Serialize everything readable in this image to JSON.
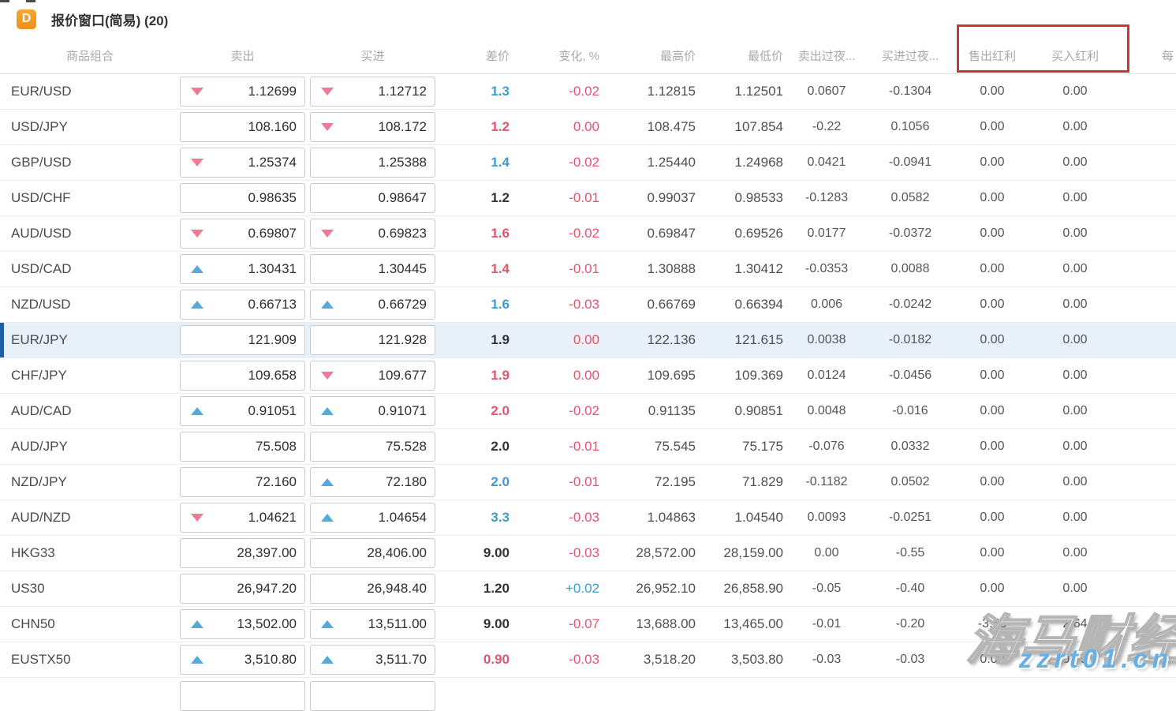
{
  "window": {
    "icon_letter": "D",
    "title": "报价窗口(简易) (20)"
  },
  "colors": {
    "accent_orange": "#f19e38",
    "trend_up": "#58a8dc",
    "trend_down": "#ee7b95",
    "value_blue": "#3e9bd0",
    "value_red": "#e2546e",
    "annotation_red": "#c83532",
    "selected_row_bg": "#e8f0fa",
    "selected_row_stripe": "#1e5fa3"
  },
  "annotation": {
    "type": "red-highlight-box",
    "highlighted_columns": [
      "售出红利",
      "买入红利"
    ]
  },
  "watermark": {
    "line1": "海马财经",
    "line2": "zzrt01.cn"
  },
  "table": {
    "headers": {
      "symbol": "商品组合",
      "sell": "卖出",
      "buy": "买进",
      "spread": "差价",
      "change": "变化, %",
      "high": "最高价",
      "low": "最低价",
      "sell_overnight": "卖出过夜...",
      "buy_overnight": "买进过夜...",
      "sell_dividend": "售出红利",
      "buy_dividend": "买入红利",
      "extra": "每"
    },
    "rows": [
      {
        "symbol": "EUR/USD",
        "sell_trend": "down",
        "sell": "1.12699",
        "buy_trend": "down",
        "buy": "1.12712",
        "spread": "1.3",
        "spread_color": "blue",
        "change": "-0.02",
        "change_color": "red",
        "high": "1.12815",
        "low": "1.12501",
        "sell_overnight": "0.0607",
        "buy_overnight": "-0.1304",
        "sell_dividend": "0.00",
        "buy_dividend": "0.00",
        "selected": false
      },
      {
        "symbol": "USD/JPY",
        "sell_trend": "none",
        "sell": "108.160",
        "buy_trend": "down",
        "buy": "108.172",
        "spread": "1.2",
        "spread_color": "red",
        "change": "0.00",
        "change_color": "red",
        "high": "108.475",
        "low": "107.854",
        "sell_overnight": "-0.22",
        "buy_overnight": "0.1056",
        "sell_dividend": "0.00",
        "buy_dividend": "0.00",
        "selected": false
      },
      {
        "symbol": "GBP/USD",
        "sell_trend": "down",
        "sell": "1.25374",
        "buy_trend": "none",
        "buy": "1.25388",
        "spread": "1.4",
        "spread_color": "blue",
        "change": "-0.02",
        "change_color": "red",
        "high": "1.25440",
        "low": "1.24968",
        "sell_overnight": "0.0421",
        "buy_overnight": "-0.0941",
        "sell_dividend": "0.00",
        "buy_dividend": "0.00",
        "selected": false
      },
      {
        "symbol": "USD/CHF",
        "sell_trend": "none",
        "sell": "0.98635",
        "buy_trend": "none",
        "buy": "0.98647",
        "spread": "1.2",
        "spread_color": "black",
        "change": "-0.01",
        "change_color": "red",
        "high": "0.99037",
        "low": "0.98533",
        "sell_overnight": "-0.1283",
        "buy_overnight": "0.0582",
        "sell_dividend": "0.00",
        "buy_dividend": "0.00",
        "selected": false
      },
      {
        "symbol": "AUD/USD",
        "sell_trend": "down",
        "sell": "0.69807",
        "buy_trend": "down",
        "buy": "0.69823",
        "spread": "1.6",
        "spread_color": "red",
        "change": "-0.02",
        "change_color": "red",
        "high": "0.69847",
        "low": "0.69526",
        "sell_overnight": "0.0177",
        "buy_overnight": "-0.0372",
        "sell_dividend": "0.00",
        "buy_dividend": "0.00",
        "selected": false
      },
      {
        "symbol": "USD/CAD",
        "sell_trend": "up",
        "sell": "1.30431",
        "buy_trend": "none",
        "buy": "1.30445",
        "spread": "1.4",
        "spread_color": "red",
        "change": "-0.01",
        "change_color": "red",
        "high": "1.30888",
        "low": "1.30412",
        "sell_overnight": "-0.0353",
        "buy_overnight": "0.0088",
        "sell_dividend": "0.00",
        "buy_dividend": "0.00",
        "selected": false
      },
      {
        "symbol": "NZD/USD",
        "sell_trend": "up",
        "sell": "0.66713",
        "buy_trend": "up",
        "buy": "0.66729",
        "spread": "1.6",
        "spread_color": "blue",
        "change": "-0.03",
        "change_color": "red",
        "high": "0.66769",
        "low": "0.66394",
        "sell_overnight": "0.006",
        "buy_overnight": "-0.0242",
        "sell_dividend": "0.00",
        "buy_dividend": "0.00",
        "selected": false
      },
      {
        "symbol": "EUR/JPY",
        "sell_trend": "none",
        "sell": "121.909",
        "buy_trend": "none",
        "buy": "121.928",
        "spread": "1.9",
        "spread_color": "black",
        "change": "0.00",
        "change_color": "red",
        "high": "122.136",
        "low": "121.615",
        "sell_overnight": "0.0038",
        "buy_overnight": "-0.0182",
        "sell_dividend": "0.00",
        "buy_dividend": "0.00",
        "selected": true
      },
      {
        "symbol": "CHF/JPY",
        "sell_trend": "none",
        "sell": "109.658",
        "buy_trend": "down",
        "buy": "109.677",
        "spread": "1.9",
        "spread_color": "red",
        "change": "0.00",
        "change_color": "red",
        "high": "109.695",
        "low": "109.369",
        "sell_overnight": "0.0124",
        "buy_overnight": "-0.0456",
        "sell_dividend": "0.00",
        "buy_dividend": "0.00",
        "selected": false
      },
      {
        "symbol": "AUD/CAD",
        "sell_trend": "up",
        "sell": "0.91051",
        "buy_trend": "up",
        "buy": "0.91071",
        "spread": "2.0",
        "spread_color": "red",
        "change": "-0.02",
        "change_color": "red",
        "high": "0.91135",
        "low": "0.90851",
        "sell_overnight": "0.0048",
        "buy_overnight": "-0.016",
        "sell_dividend": "0.00",
        "buy_dividend": "0.00",
        "selected": false
      },
      {
        "symbol": "AUD/JPY",
        "sell_trend": "none",
        "sell": "75.508",
        "buy_trend": "none",
        "buy": "75.528",
        "spread": "2.0",
        "spread_color": "black",
        "change": "-0.01",
        "change_color": "red",
        "high": "75.545",
        "low": "75.175",
        "sell_overnight": "-0.076",
        "buy_overnight": "0.0332",
        "sell_dividend": "0.00",
        "buy_dividend": "0.00",
        "selected": false
      },
      {
        "symbol": "NZD/JPY",
        "sell_trend": "none",
        "sell": "72.160",
        "buy_trend": "up",
        "buy": "72.180",
        "spread": "2.0",
        "spread_color": "blue",
        "change": "-0.01",
        "change_color": "red",
        "high": "72.195",
        "low": "71.829",
        "sell_overnight": "-0.1182",
        "buy_overnight": "0.0502",
        "sell_dividend": "0.00",
        "buy_dividend": "0.00",
        "selected": false
      },
      {
        "symbol": "AUD/NZD",
        "sell_trend": "down",
        "sell": "1.04621",
        "buy_trend": "up",
        "buy": "1.04654",
        "spread": "3.3",
        "spread_color": "blue",
        "change": "-0.03",
        "change_color": "red",
        "high": "1.04863",
        "low": "1.04540",
        "sell_overnight": "0.0093",
        "buy_overnight": "-0.0251",
        "sell_dividend": "0.00",
        "buy_dividend": "0.00",
        "selected": false
      },
      {
        "symbol": "HKG33",
        "sell_trend": "none",
        "sell": "28,397.00",
        "buy_trend": "none",
        "buy": "28,406.00",
        "spread": "9.00",
        "spread_color": "black",
        "change": "-0.03",
        "change_color": "red",
        "high": "28,572.00",
        "low": "28,159.00",
        "sell_overnight": "0.00",
        "buy_overnight": "-0.55",
        "sell_dividend": "0.00",
        "buy_dividend": "0.00",
        "selected": false
      },
      {
        "symbol": "US30",
        "sell_trend": "none",
        "sell": "26,947.20",
        "buy_trend": "none",
        "buy": "26,948.40",
        "spread": "1.20",
        "spread_color": "black",
        "change": "+0.02",
        "change_color": "blue",
        "high": "26,952.10",
        "low": "26,858.90",
        "sell_overnight": "-0.05",
        "buy_overnight": "-0.40",
        "sell_dividend": "0.00",
        "buy_dividend": "0.00",
        "selected": false
      },
      {
        "symbol": "CHN50",
        "sell_trend": "up",
        "sell": "13,502.00",
        "buy_trend": "up",
        "buy": "13,511.00",
        "spread": "9.00",
        "spread_color": "black",
        "change": "-0.07",
        "change_color": "red",
        "high": "13,688.00",
        "low": "13,465.00",
        "sell_overnight": "-0.01",
        "buy_overnight": "-0.20",
        "sell_dividend": "-3.53",
        "buy_dividend": "2.64",
        "selected": false
      },
      {
        "symbol": "EUSTX50",
        "sell_trend": "up",
        "sell": "3,510.80",
        "buy_trend": "up",
        "buy": "3,511.70",
        "spread": "0.90",
        "spread_color": "red",
        "change": "-0.03",
        "change_color": "red",
        "high": "3,518.20",
        "low": "3,503.80",
        "sell_overnight": "-0.03",
        "buy_overnight": "-0.03",
        "sell_dividend": "0.00",
        "buy_dividend": "0.00",
        "selected": false
      }
    ]
  }
}
